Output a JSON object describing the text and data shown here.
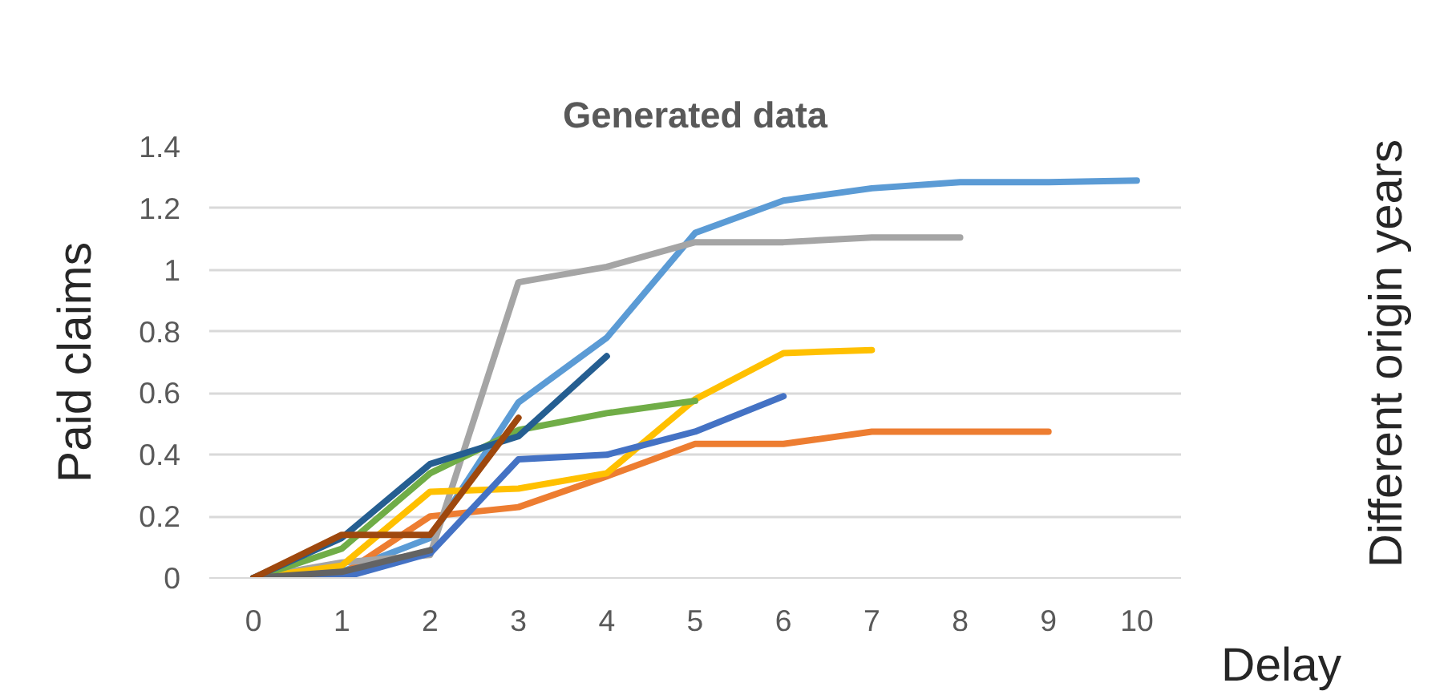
{
  "chart_data": {
    "type": "line",
    "title": "Generated data",
    "xlabel": "Delay",
    "ylabel": "Paid claims",
    "annotations": [
      "Different origin years"
    ],
    "categories": [
      "0",
      "1",
      "2",
      "3",
      "4",
      "5",
      "6",
      "7",
      "8",
      "9",
      "10"
    ],
    "ylim": [
      0,
      1.4
    ],
    "yticks": [
      0,
      0.2,
      0.4,
      0.6,
      0.8,
      1,
      1.2,
      1.4
    ],
    "grid": "y",
    "line_style": "solid",
    "series": [
      {
        "color": "#5b9bd5",
        "values": [
          0,
          0.02,
          0.13,
          0.57,
          0.78,
          1.12,
          1.225,
          1.265,
          1.285,
          1.285,
          1.29
        ]
      },
      {
        "color": "#ed7d31",
        "values": [
          0,
          0.01,
          0.2,
          0.23,
          0.33,
          0.435,
          0.435,
          0.475,
          0.475,
          0.475,
          null
        ]
      },
      {
        "color": "#a5a5a5",
        "values": [
          0,
          0.05,
          0.075,
          0.96,
          1.01,
          1.09,
          1.09,
          1.105,
          1.105,
          null,
          null
        ]
      },
      {
        "color": "#ffc000",
        "values": [
          0,
          0.04,
          0.28,
          0.29,
          0.34,
          0.58,
          0.73,
          0.74,
          null,
          null,
          null
        ]
      },
      {
        "color": "#4472c4",
        "values": [
          0,
          0,
          0.08,
          0.385,
          0.4,
          0.475,
          0.59,
          null,
          null,
          null,
          null
        ]
      },
      {
        "color": "#70ad47",
        "values": [
          0,
          0.095,
          0.34,
          0.48,
          0.535,
          0.575,
          null,
          null,
          null,
          null,
          null
        ]
      },
      {
        "color": "#255e91",
        "values": [
          0,
          0.13,
          0.37,
          0.46,
          0.72,
          null,
          null,
          null,
          null,
          null,
          null
        ]
      },
      {
        "color": "#636363",
        "values": [
          0,
          0.02,
          0.09,
          null,
          null,
          null,
          null,
          null,
          null,
          null,
          null
        ]
      },
      {
        "color": "#9e480e",
        "values": [
          0,
          0.14,
          0.14,
          0.52,
          null,
          null,
          null,
          null,
          null,
          null,
          null
        ]
      }
    ]
  }
}
